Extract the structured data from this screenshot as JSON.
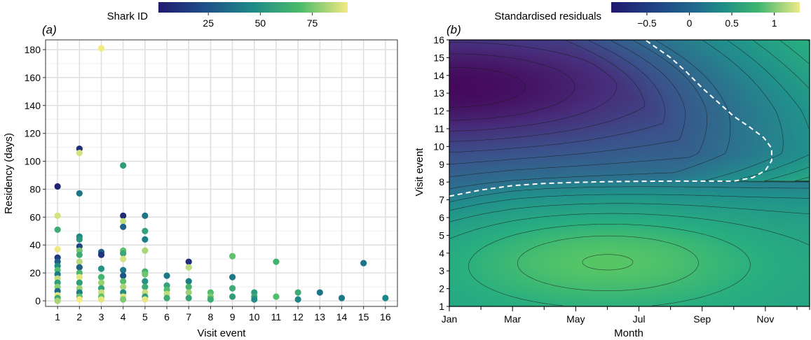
{
  "figure": {
    "panel_a_label": "(a)",
    "panel_b_label": "(b)"
  },
  "colorbar_a": {
    "title": "Shark ID",
    "ticks": [
      "25",
      "50",
      "75"
    ],
    "tick_values": [
      25,
      50,
      75
    ],
    "range": [
      1,
      92
    ]
  },
  "colorbar_b": {
    "title": "Standardised residuals",
    "ticks": [
      "−0.5",
      "0",
      "0.5",
      "1"
    ],
    "tick_values": [
      -0.5,
      0,
      0.5,
      1
    ],
    "range": [
      -0.92,
      1.3
    ]
  },
  "chart_data": [
    {
      "type": "scatter",
      "panel": "a",
      "xlabel": "Visit event",
      "ylabel": "Residency (days)",
      "xticks": [
        "1",
        "2",
        "3",
        "4",
        "5",
        "6",
        "7",
        "8",
        "9",
        "10",
        "11",
        "12",
        "13",
        "14",
        "15",
        "16"
      ],
      "yticks": [
        "0",
        "20",
        "40",
        "60",
        "80",
        "100",
        "120",
        "140",
        "160",
        "180"
      ],
      "xlim": [
        0.45,
        16.55
      ],
      "ylim": [
        -4,
        187
      ],
      "grid": true,
      "color_variable": "Shark ID",
      "points": [
        {
          "x": 1,
          "y": 82,
          "id": 5
        },
        {
          "x": 1,
          "y": 61,
          "id": 88
        },
        {
          "x": 1,
          "y": 51,
          "id": 62
        },
        {
          "x": 1,
          "y": 37,
          "id": 91
        },
        {
          "x": 1,
          "y": 31,
          "id": 15
        },
        {
          "x": 1,
          "y": 28,
          "id": 30
        },
        {
          "x": 1,
          "y": 25,
          "id": 48
        },
        {
          "x": 1,
          "y": 22,
          "id": 70
        },
        {
          "x": 1,
          "y": 19,
          "id": 40
        },
        {
          "x": 1,
          "y": 16,
          "id": 85
        },
        {
          "x": 1,
          "y": 13,
          "id": 55
        },
        {
          "x": 1,
          "y": 10,
          "id": 78
        },
        {
          "x": 1,
          "y": 7,
          "id": 35
        },
        {
          "x": 1,
          "y": 4,
          "id": 90
        },
        {
          "x": 1,
          "y": 2,
          "id": 60
        },
        {
          "x": 1,
          "y": 0,
          "id": 82
        },
        {
          "x": 2,
          "y": 109,
          "id": 10
        },
        {
          "x": 2,
          "y": 106,
          "id": 88
        },
        {
          "x": 2,
          "y": 77,
          "id": 38
        },
        {
          "x": 2,
          "y": 46,
          "id": 45
        },
        {
          "x": 2,
          "y": 44,
          "id": 52
        },
        {
          "x": 2,
          "y": 39,
          "id": 20
        },
        {
          "x": 2,
          "y": 36,
          "id": 75
        },
        {
          "x": 2,
          "y": 33,
          "id": 62
        },
        {
          "x": 2,
          "y": 28,
          "id": 84
        },
        {
          "x": 2,
          "y": 24,
          "id": 30
        },
        {
          "x": 2,
          "y": 20,
          "id": 68
        },
        {
          "x": 2,
          "y": 17,
          "id": 90
        },
        {
          "x": 2,
          "y": 13,
          "id": 55
        },
        {
          "x": 2,
          "y": 9,
          "id": 80
        },
        {
          "x": 2,
          "y": 6,
          "id": 42
        },
        {
          "x": 2,
          "y": 3,
          "id": 72
        },
        {
          "x": 2,
          "y": 1,
          "id": 92
        },
        {
          "x": 3,
          "y": 181,
          "id": 92
        },
        {
          "x": 3,
          "y": 35,
          "id": 30
        },
        {
          "x": 3,
          "y": 33,
          "id": 12
        },
        {
          "x": 3,
          "y": 23,
          "id": 50
        },
        {
          "x": 3,
          "y": 17,
          "id": 66
        },
        {
          "x": 3,
          "y": 13,
          "id": 80
        },
        {
          "x": 3,
          "y": 9,
          "id": 58
        },
        {
          "x": 3,
          "y": 6,
          "id": 86
        },
        {
          "x": 3,
          "y": 3,
          "id": 72
        },
        {
          "x": 3,
          "y": 1,
          "id": 90
        },
        {
          "x": 4,
          "y": 97,
          "id": 55
        },
        {
          "x": 4,
          "y": 61,
          "id": 8
        },
        {
          "x": 4,
          "y": 57,
          "id": 85
        },
        {
          "x": 4,
          "y": 53,
          "id": 32
        },
        {
          "x": 4,
          "y": 36,
          "id": 72
        },
        {
          "x": 4,
          "y": 34,
          "id": 60
        },
        {
          "x": 4,
          "y": 30,
          "id": 88
        },
        {
          "x": 4,
          "y": 22,
          "id": 40
        },
        {
          "x": 4,
          "y": 18,
          "id": 25
        },
        {
          "x": 4,
          "y": 14,
          "id": 70
        },
        {
          "x": 4,
          "y": 10,
          "id": 82
        },
        {
          "x": 4,
          "y": 6,
          "id": 48
        },
        {
          "x": 4,
          "y": 3,
          "id": 90
        },
        {
          "x": 4,
          "y": 1,
          "id": 76
        },
        {
          "x": 5,
          "y": 61,
          "id": 38
        },
        {
          "x": 5,
          "y": 50,
          "id": 58
        },
        {
          "x": 5,
          "y": 44,
          "id": 42
        },
        {
          "x": 5,
          "y": 36,
          "id": 82
        },
        {
          "x": 5,
          "y": 21,
          "id": 65
        },
        {
          "x": 5,
          "y": 19,
          "id": 74
        },
        {
          "x": 5,
          "y": 14,
          "id": 50
        },
        {
          "x": 5,
          "y": 10,
          "id": 62
        },
        {
          "x": 5,
          "y": 6,
          "id": 86
        },
        {
          "x": 5,
          "y": 3,
          "id": 55
        },
        {
          "x": 5,
          "y": 1,
          "id": 90
        },
        {
          "x": 6,
          "y": 18,
          "id": 40
        },
        {
          "x": 6,
          "y": 11,
          "id": 58
        },
        {
          "x": 6,
          "y": 8,
          "id": 70
        },
        {
          "x": 6,
          "y": 5,
          "id": 85
        },
        {
          "x": 6,
          "y": 2,
          "id": 62
        },
        {
          "x": 7,
          "y": 28,
          "id": 10
        },
        {
          "x": 7,
          "y": 24,
          "id": 84
        },
        {
          "x": 7,
          "y": 14,
          "id": 42
        },
        {
          "x": 7,
          "y": 10,
          "id": 66
        },
        {
          "x": 7,
          "y": 6,
          "id": 80
        },
        {
          "x": 7,
          "y": 2,
          "id": 58
        },
        {
          "x": 8,
          "y": 6,
          "id": 70
        },
        {
          "x": 8,
          "y": 3,
          "id": 76
        },
        {
          "x": 8,
          "y": 1,
          "id": 62
        },
        {
          "x": 9,
          "y": 32,
          "id": 72
        },
        {
          "x": 9,
          "y": 17,
          "id": 40
        },
        {
          "x": 9,
          "y": 9,
          "id": 62
        },
        {
          "x": 9,
          "y": 3,
          "id": 56
        },
        {
          "x": 10,
          "y": 6,
          "id": 55
        },
        {
          "x": 10,
          "y": 3,
          "id": 60
        },
        {
          "x": 10,
          "y": 1,
          "id": 48
        },
        {
          "x": 11,
          "y": 28,
          "id": 65
        },
        {
          "x": 11,
          "y": 3,
          "id": 70
        },
        {
          "x": 12,
          "y": 6,
          "id": 62
        },
        {
          "x": 12,
          "y": 1,
          "id": 45
        },
        {
          "x": 13,
          "y": 6,
          "id": 38
        },
        {
          "x": 14,
          "y": 2,
          "id": 40
        },
        {
          "x": 15,
          "y": 27,
          "id": 38
        },
        {
          "x": 16,
          "y": 2,
          "id": 45
        }
      ]
    },
    {
      "type": "heatmap",
      "panel": "b",
      "xlabel": "Month",
      "ylabel": "Visit event",
      "xticks": [
        "Jan",
        "Mar",
        "May",
        "Jul",
        "Sep",
        "Nov"
      ],
      "xlim": [
        1,
        12.4
      ],
      "yticks": [
        "1",
        "2",
        "3",
        "4",
        "5",
        "6",
        "7",
        "8",
        "9",
        "10",
        "11",
        "12",
        "13",
        "14",
        "15",
        "16"
      ],
      "ylim": [
        1,
        16
      ],
      "contour_interval": 0.1,
      "zero_contour": "white dashed",
      "features": {
        "minimum": {
          "month": 1.1,
          "visit": 13.3,
          "value": -0.85
        },
        "maximum": {
          "month": 12.4,
          "visit": 16,
          "value": 1.2
        },
        "local_peak": {
          "month": 6,
          "visit": 3.6,
          "value": 0.62
        }
      },
      "zero_line": [
        {
          "month": 1,
          "visit": 7.2
        },
        {
          "month": 2,
          "visit": 7.55
        },
        {
          "month": 3,
          "visit": 7.8
        },
        {
          "month": 4,
          "visit": 7.92
        },
        {
          "month": 5,
          "visit": 7.98
        },
        {
          "month": 6,
          "visit": 8.02
        },
        {
          "month": 7,
          "visit": 8.04
        },
        {
          "month": 8,
          "visit": 8.05
        },
        {
          "month": 9,
          "visit": 8.05
        },
        {
          "month": 10,
          "visit": 8.05
        },
        {
          "month": 10.6,
          "visit": 8.25
        },
        {
          "month": 11,
          "visit": 8.65
        },
        {
          "month": 11.2,
          "visit": 9.2
        },
        {
          "month": 11.2,
          "visit": 9.9
        },
        {
          "month": 10.95,
          "visit": 10.5
        },
        {
          "month": 10.5,
          "visit": 11.1
        },
        {
          "month": 10.0,
          "visit": 11.7
        },
        {
          "month": 9.5,
          "visit": 12.5
        },
        {
          "month": 9.0,
          "visit": 13.3
        },
        {
          "month": 8.5,
          "visit": 14.2
        },
        {
          "month": 8.0,
          "visit": 15.0
        },
        {
          "month": 7.2,
          "visit": 16
        }
      ]
    }
  ]
}
